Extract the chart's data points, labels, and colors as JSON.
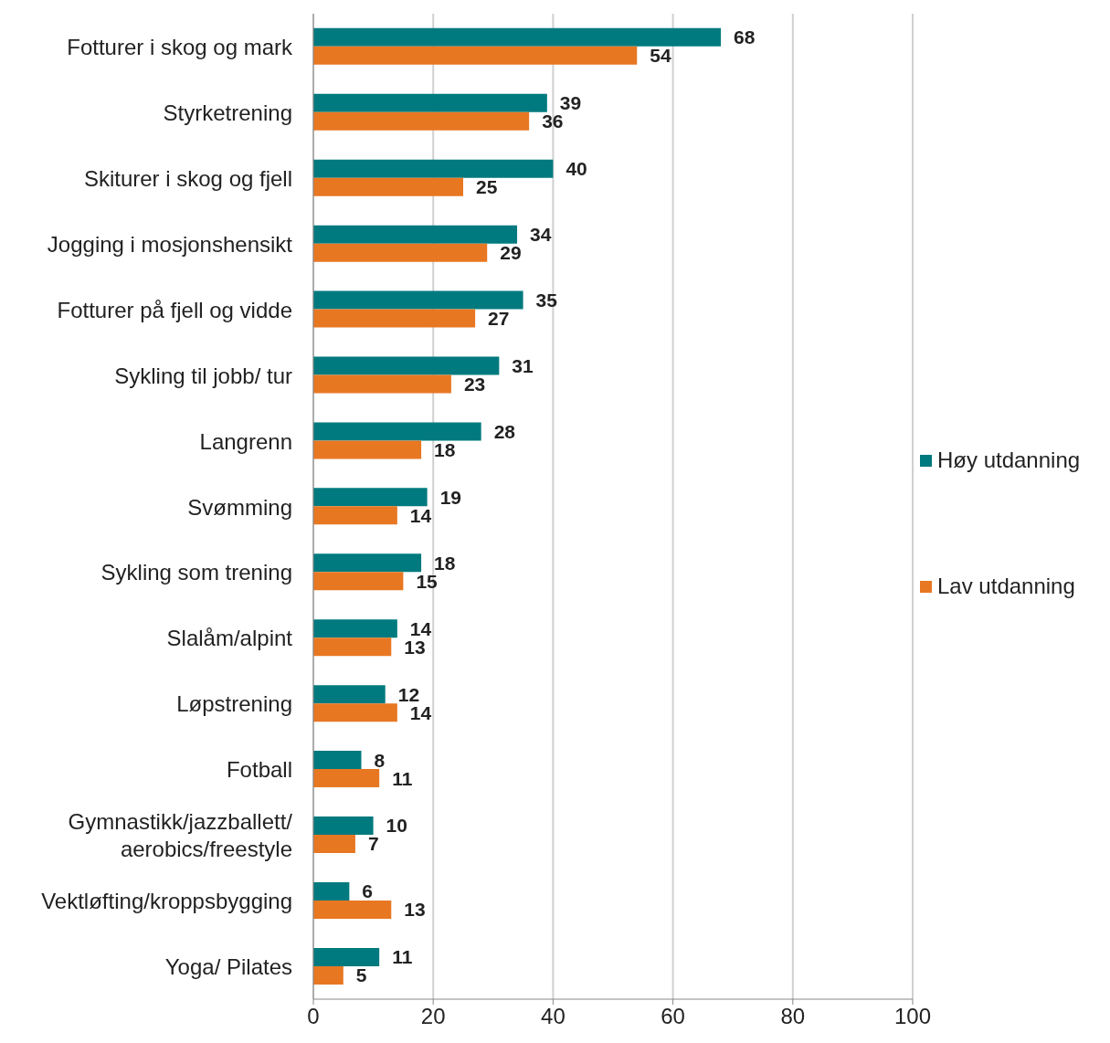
{
  "chart_data": {
    "type": "bar",
    "orientation": "horizontal",
    "categories": [
      "Fotturer i skog og mark",
      "Styrketrening",
      "Skiturer i skog og fjell",
      "Jogging i mosjonshensikt",
      "Fotturer på fjell og vidde",
      "Sykling til jobb/ tur",
      "Langrenn",
      "Svømming",
      "Sykling som trening",
      "Slalåm/alpint",
      "Løpstrening",
      "Fotball",
      "Gymnastikk/jazzballett/ aerobics/freestyle",
      "Vektløfting/kroppsbygging",
      "Yoga/ Pilates"
    ],
    "series": [
      {
        "name": "Høy utdanning",
        "color": "#007a7e",
        "values": [
          68,
          39,
          40,
          34,
          35,
          31,
          28,
          19,
          18,
          14,
          12,
          8,
          10,
          6,
          11
        ]
      },
      {
        "name": "Lav utdanning",
        "color": "#e87722",
        "values": [
          54,
          36,
          25,
          29,
          27,
          23,
          18,
          14,
          15,
          13,
          14,
          11,
          7,
          13,
          5
        ]
      }
    ],
    "xlim": [
      0,
      100
    ],
    "xticks": [
      0,
      20,
      40,
      60,
      80,
      100
    ],
    "grid": "x",
    "legend": "right",
    "data_labels": true
  }
}
